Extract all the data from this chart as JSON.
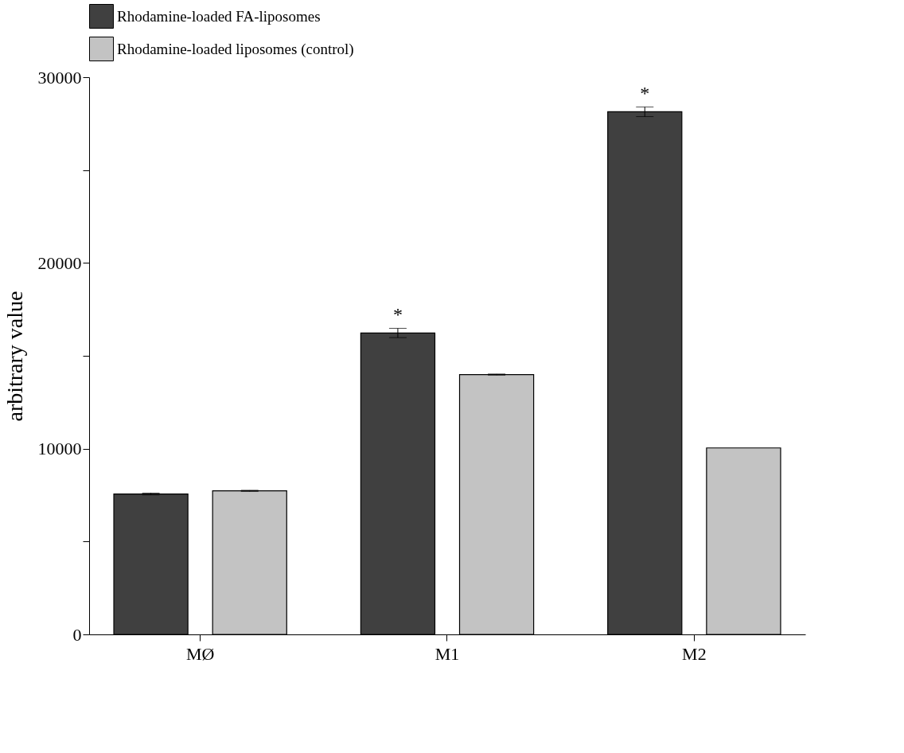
{
  "chart_data": {
    "type": "bar",
    "ylabel": "arbitrary value",
    "categories": [
      "MØ",
      "M1",
      "M2"
    ],
    "series": [
      {
        "name": "Rhodamine-loaded FA-liposomes",
        "color": "#404040",
        "values": [
          7560,
          16230,
          28140
        ],
        "errors": [
          50,
          250,
          260
        ],
        "value_labels": [
          null,
          "*",
          "*"
        ]
      },
      {
        "name": "Rhodamine-loaded liposomes (control)",
        "color": "#c3c3c3",
        "values": [
          7730,
          13990,
          10040
        ],
        "errors": [
          30,
          30,
          null
        ]
      }
    ],
    "ylim": [
      0,
      30000
    ],
    "yticks": [
      0,
      {
        "value": 5000,
        "label": null
      },
      10000,
      {
        "value": 15000,
        "label": null
      },
      20000,
      {
        "value": 25000,
        "label": null
      },
      30000
    ],
    "legend": "top",
    "grid": false
  }
}
